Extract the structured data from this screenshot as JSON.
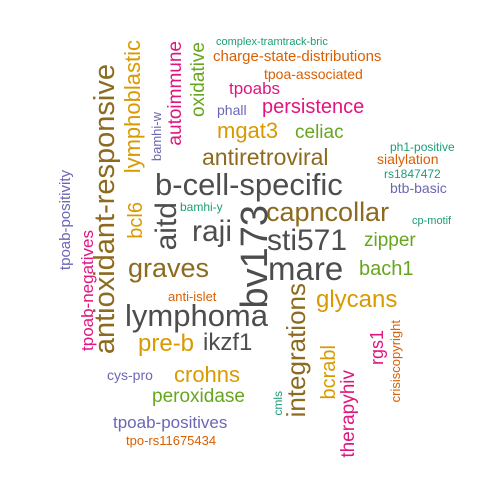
{
  "colors": {
    "dark_gray": "#4d4d4d",
    "brown": "#8c6a1e",
    "gold": "#d99a00",
    "green": "#66a61e",
    "magenta": "#e0157f",
    "orange": "#d95f02",
    "purple": "#6b66b5",
    "teal": "#1b9e77"
  },
  "words": [
    "b-cell-specific",
    "bv173",
    "mare",
    "sti571",
    "lymphoma",
    "raji",
    "graves",
    "aitd",
    "antioxidant-responsive",
    "capncollar",
    "antiretroviral",
    "integrations",
    "lymphoblastic",
    "ikzf1",
    "pre-b",
    "glycans",
    "mgat3",
    "crohns",
    "persistence",
    "autoimmune",
    "oxidative",
    "bach1",
    "zipper",
    "celiac",
    "peroxidase",
    "bcl6",
    "bcrabl",
    "therapyhiv",
    "tpoab-negatives",
    "tpoab-positives",
    "tpoabs",
    "rgs1",
    "tpoab-positivity",
    "charge-state-distributions",
    "tpoa-associated",
    "sialylation",
    "crisiscopyright",
    "bamhi-w",
    "phall",
    "btb-basic",
    "complex-tramtrack-bric",
    "ph1-positive",
    "rs1847472",
    "bamhi-y",
    "cp-motif",
    "anti-islet",
    "cys-pro",
    "cmls",
    "tpo-rs11675434"
  ]
}
